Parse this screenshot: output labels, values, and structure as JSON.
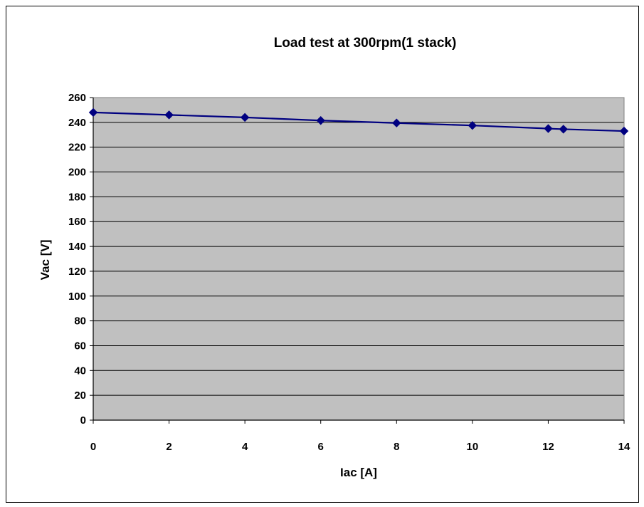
{
  "chart_data": {
    "type": "line",
    "title": "Load test at 300rpm(1 stack)",
    "xlabel": "Iac [A]",
    "ylabel": "Vac [V]",
    "xlim": [
      0,
      14
    ],
    "ylim": [
      0,
      260
    ],
    "xticks": [
      0,
      2,
      4,
      6,
      8,
      10,
      12,
      14
    ],
    "yticks": [
      0,
      20,
      40,
      60,
      80,
      100,
      120,
      140,
      160,
      180,
      200,
      220,
      240,
      260
    ],
    "grid": true,
    "legend": "none",
    "plot_background": "#c0c0c0",
    "series_color": "#000080",
    "marker": "diamond",
    "series": [
      {
        "x": [
          0,
          2,
          4,
          6,
          8,
          10,
          12,
          12.4,
          14
        ],
        "y": [
          248,
          246,
          244,
          241.5,
          239.5,
          237.5,
          235,
          234.5,
          233
        ]
      }
    ]
  }
}
